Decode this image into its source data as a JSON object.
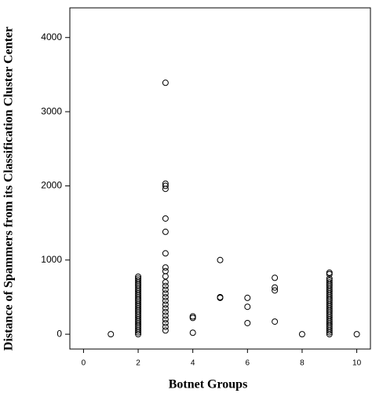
{
  "chart_data": {
    "type": "scatter",
    "xlabel": "Botnet Groups",
    "ylabel": "Distance of Spammers from its Classification Cluster Center",
    "x": [
      1,
      2,
      2,
      2,
      2,
      2,
      2,
      2,
      2,
      2,
      2,
      2,
      2,
      2,
      2,
      2,
      2,
      2,
      2,
      2,
      2,
      2,
      2,
      2,
      2,
      2,
      2,
      2,
      2,
      2,
      2,
      2,
      2,
      3,
      3,
      3,
      3,
      3,
      3,
      3,
      3,
      3,
      3,
      3,
      3,
      3,
      3,
      3,
      3,
      3,
      3,
      3,
      3,
      3,
      3,
      3,
      3,
      4,
      4,
      4,
      5,
      5,
      5,
      6,
      6,
      6,
      7,
      7,
      7,
      7,
      8,
      9,
      9,
      9,
      9,
      9,
      9,
      9,
      9,
      9,
      9,
      9,
      9,
      9,
      9,
      9,
      9,
      9,
      9,
      9,
      9,
      9,
      9,
      9,
      9,
      9,
      9,
      9,
      9,
      9,
      9,
      9,
      9,
      9,
      10
    ],
    "values": [
      0,
      0,
      25,
      50,
      75,
      100,
      125,
      150,
      175,
      200,
      225,
      250,
      275,
      300,
      325,
      350,
      375,
      400,
      425,
      450,
      475,
      500,
      525,
      550,
      575,
      600,
      625,
      650,
      675,
      700,
      725,
      750,
      775,
      50,
      100,
      150,
      200,
      250,
      300,
      350,
      400,
      450,
      500,
      550,
      600,
      650,
      700,
      780,
      850,
      900,
      1090,
      1380,
      1560,
      1960,
      2000,
      2030,
      3390,
      240,
      220,
      20,
      1000,
      500,
      490,
      490,
      370,
      150,
      760,
      630,
      590,
      170,
      0,
      0,
      25,
      50,
      75,
      100,
      125,
      150,
      175,
      200,
      225,
      250,
      275,
      300,
      325,
      350,
      375,
      400,
      425,
      450,
      475,
      500,
      525,
      550,
      575,
      600,
      625,
      650,
      675,
      700,
      725,
      750,
      810,
      830,
      0
    ],
    "color": "#000000",
    "xlim": [
      -0.5,
      10.5
    ],
    "ylim": [
      -200,
      4400
    ],
    "xticks": [
      0,
      2,
      4,
      6,
      8,
      10
    ],
    "yticks": [
      0,
      1000,
      2000,
      3000,
      4000
    ]
  }
}
